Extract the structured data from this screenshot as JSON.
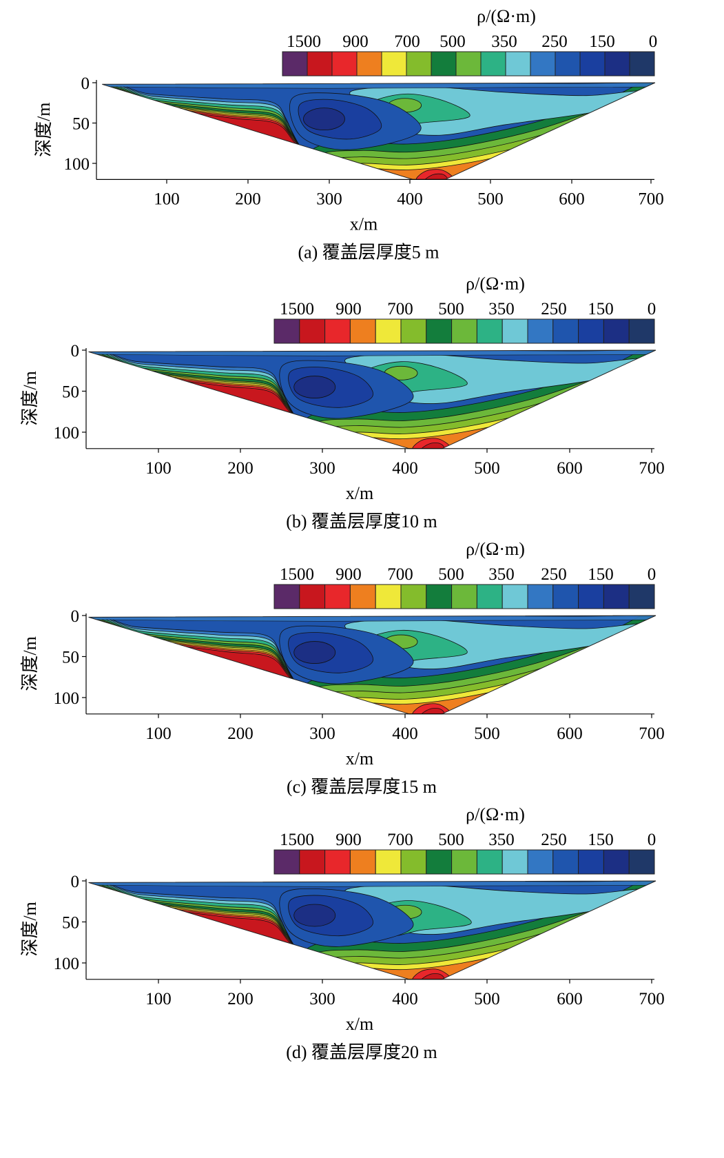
{
  "chart_data": [
    {
      "type": "heatmap",
      "title": "",
      "caption": "(a) 覆盖层厚度5 m",
      "xlabel": "x/m",
      "ylabel": "深度/m",
      "colorbar_label": "ρ/(Ω·m)",
      "colorbar_ticks": [
        "1500",
        "900",
        "700",
        "500",
        "350",
        "250",
        "150",
        "0"
      ],
      "colorbar_colors": [
        "#5b2a68",
        "#c8171e",
        "#e8272b",
        "#ee7f1f",
        "#efe839",
        "#84bc2c",
        "#137d3c",
        "#6cb83a",
        "#2db285",
        "#6fc8d6",
        "#3377c3",
        "#1f55ad",
        "#1a3f9f",
        "#1c2f84",
        "#1f3868"
      ],
      "x_ticks": [
        "100",
        "200",
        "300",
        "400",
        "500",
        "600",
        "700"
      ],
      "y_ticks": [
        "0",
        "50",
        "100"
      ],
      "xlim": [
        20,
        705
      ],
      "ylim": [
        0,
        120
      ],
      "bottom_anomaly_x": 425,
      "features": {
        "low_center_x": 295,
        "low_center_depth": 45,
        "green_center_x": 395,
        "green_center_depth": 28
      }
    },
    {
      "type": "heatmap",
      "title": "",
      "caption": "(b) 覆盖层厚度10 m",
      "xlabel": "x/m",
      "ylabel": "深度/m",
      "colorbar_label": "ρ/(Ω·m)",
      "colorbar_ticks": [
        "1500",
        "900",
        "700",
        "500",
        "350",
        "250",
        "150",
        "0"
      ],
      "colorbar_colors": [
        "#5b2a68",
        "#c8171e",
        "#e8272b",
        "#ee7f1f",
        "#efe839",
        "#84bc2c",
        "#137d3c",
        "#6cb83a",
        "#2db285",
        "#6fc8d6",
        "#3377c3",
        "#1f55ad",
        "#1a3f9f",
        "#1c2f84",
        "#1f3868"
      ],
      "x_ticks": [
        "100",
        "200",
        "300",
        "400",
        "500",
        "600",
        "700"
      ],
      "y_ticks": [
        "0",
        "50",
        "100"
      ],
      "xlim": [
        15,
        705
      ],
      "ylim": [
        0,
        120
      ],
      "bottom_anomaly_x": 425,
      "features": {
        "low_center_x": 290,
        "low_center_depth": 45,
        "green_center_x": 395,
        "green_center_depth": 28
      }
    },
    {
      "type": "heatmap",
      "title": "",
      "caption": "(c) 覆盖层厚度15 m",
      "xlabel": "x/m",
      "ylabel": "深度/m",
      "colorbar_label": "ρ/(Ω·m)",
      "colorbar_ticks": [
        "1500",
        "900",
        "700",
        "500",
        "350",
        "250",
        "150",
        "0"
      ],
      "colorbar_colors": [
        "#5b2a68",
        "#c8171e",
        "#e8272b",
        "#ee7f1f",
        "#efe839",
        "#84bc2c",
        "#137d3c",
        "#6cb83a",
        "#2db285",
        "#6fc8d6",
        "#3377c3",
        "#1f55ad",
        "#1a3f9f",
        "#1c2f84",
        "#1f3868"
      ],
      "x_ticks": [
        "100",
        "200",
        "300",
        "400",
        "500",
        "600",
        "700"
      ],
      "y_ticks": [
        "0",
        "50",
        "100"
      ],
      "xlim": [
        15,
        705
      ],
      "ylim": [
        0,
        120
      ],
      "bottom_anomaly_x": 425,
      "features": {
        "low_center_x": 290,
        "low_center_depth": 45,
        "green_center_x": 395,
        "green_center_depth": 32
      }
    },
    {
      "type": "heatmap",
      "title": "",
      "caption": "(d) 覆盖层厚度20 m",
      "xlabel": "x/m",
      "ylabel": "深度/m",
      "colorbar_label": "ρ/(Ω·m)",
      "colorbar_ticks": [
        "1500",
        "900",
        "700",
        "500",
        "350",
        "250",
        "150",
        "0"
      ],
      "colorbar_colors": [
        "#5b2a68",
        "#c8171e",
        "#e8272b",
        "#ee7f1f",
        "#efe839",
        "#84bc2c",
        "#137d3c",
        "#6cb83a",
        "#2db285",
        "#6fc8d6",
        "#3377c3",
        "#1f55ad",
        "#1a3f9f",
        "#1c2f84",
        "#1f3868"
      ],
      "x_ticks": [
        "100",
        "200",
        "300",
        "400",
        "500",
        "600",
        "700"
      ],
      "y_ticks": [
        "0",
        "50",
        "100"
      ],
      "xlim": [
        15,
        705
      ],
      "ylim": [
        0,
        120
      ],
      "bottom_anomaly_x": 425,
      "features": {
        "low_center_x": 290,
        "low_center_depth": 42,
        "green_center_x": 400,
        "green_center_depth": 38
      }
    }
  ]
}
